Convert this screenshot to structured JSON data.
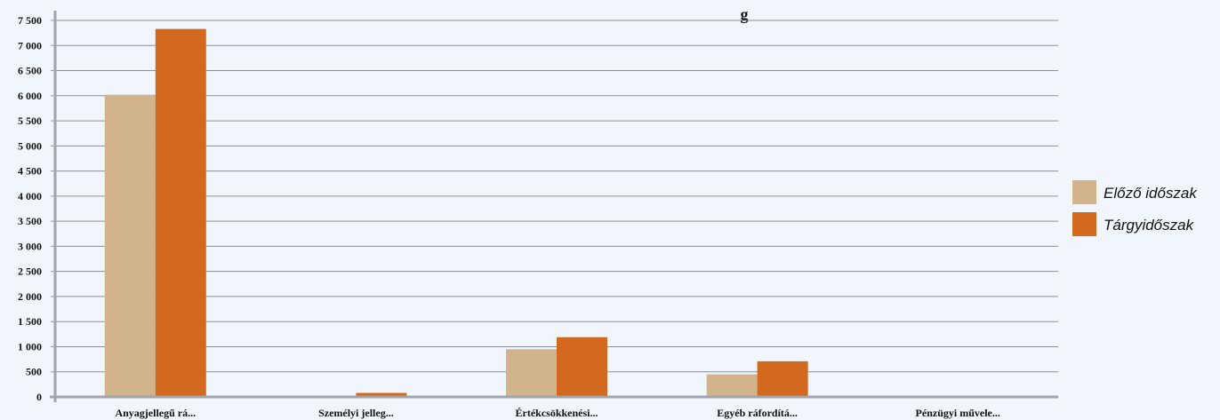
{
  "chart_data": {
    "type": "bar",
    "title": "g",
    "categories": [
      "Anyagjellegű rá...",
      "Személyi jelleg...",
      "Értékcsökkenési...",
      "Egyéb ráfordítá...",
      "Pénzügyi művele..."
    ],
    "series": [
      {
        "name": "Előző időszak",
        "color": "#d2b48c",
        "values": [
          6020,
          0,
          950,
          450,
          0
        ]
      },
      {
        "name": "Tárgyidőszak",
        "color": "#d2691e",
        "values": [
          7330,
          80,
          1190,
          710,
          0
        ]
      }
    ],
    "yticks": [
      0,
      500,
      1000,
      1500,
      2000,
      2500,
      3000,
      3500,
      4000,
      4500,
      5000,
      5500,
      6000,
      6500,
      7000,
      7500
    ],
    "ytick_labels": [
      "0",
      "500",
      "1 000",
      "1 500",
      "2 000",
      "2 500",
      "3 000",
      "3 500",
      "4 000",
      "4 500",
      "5 000",
      "5 500",
      "6 000",
      "6 500",
      "7 000",
      "7 500"
    ],
    "ylim": [
      0,
      7500
    ],
    "grid": true,
    "legend_position": "right"
  }
}
